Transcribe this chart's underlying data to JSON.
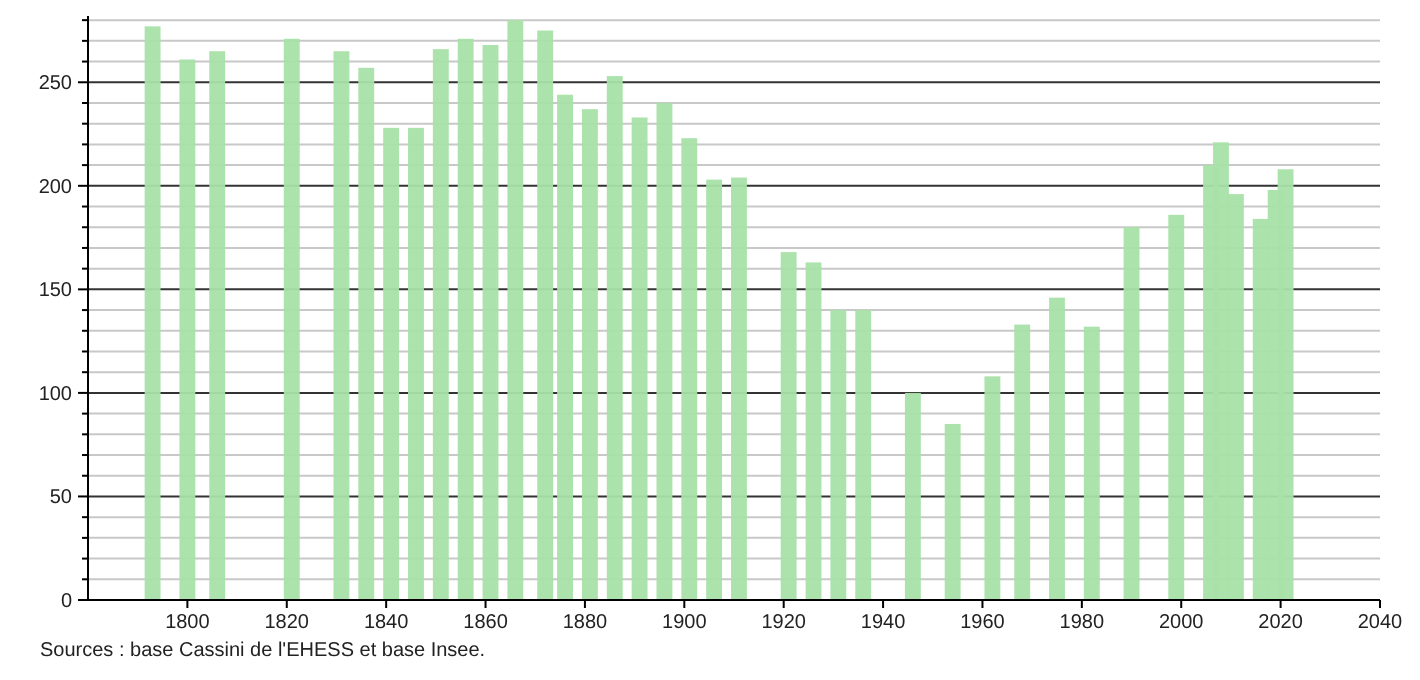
{
  "chart_data": {
    "type": "bar",
    "color": "#a8e2a8",
    "x": [
      1793,
      1800,
      1806,
      1821,
      1831,
      1836,
      1841,
      1846,
      1851,
      1856,
      1861,
      1866,
      1872,
      1876,
      1881,
      1886,
      1891,
      1896,
      1901,
      1906,
      1911,
      1921,
      1926,
      1931,
      1936,
      1946,
      1954,
      1962,
      1968,
      1975,
      1982,
      1990,
      1999,
      2006,
      2008,
      2011,
      2016,
      2019,
      2021
    ],
    "values": [
      277,
      261,
      265,
      271,
      265,
      257,
      228,
      228,
      266,
      271,
      268,
      280,
      275,
      244,
      237,
      253,
      233,
      240,
      223,
      203,
      204,
      168,
      163,
      140,
      140,
      100,
      85,
      108,
      133,
      146,
      132,
      180,
      186,
      210,
      221,
      196,
      184,
      198,
      208
    ],
    "xlim": [
      1780,
      2040
    ],
    "xticks": [
      1800,
      1820,
      1840,
      1860,
      1880,
      1900,
      1920,
      1940,
      1960,
      1980,
      2000,
      2020,
      2040
    ],
    "ylim": [
      0,
      282
    ],
    "yticks": [
      0,
      {
        "value": 10,
        "label": null
      },
      {
        "value": 20,
        "label": null
      },
      {
        "value": 30,
        "label": null
      },
      {
        "value": 40,
        "label": null
      },
      50,
      {
        "value": 60,
        "label": null
      },
      {
        "value": 70,
        "label": null
      },
      {
        "value": 80,
        "label": null
      },
      {
        "value": 90,
        "label": null
      },
      100,
      {
        "value": 110,
        "label": null
      },
      {
        "value": 120,
        "label": null
      },
      {
        "value": 130,
        "label": null
      },
      {
        "value": 140,
        "label": null
      },
      150,
      {
        "value": 160,
        "label": null
      },
      {
        "value": 170,
        "label": null
      },
      {
        "value": 180,
        "label": null
      },
      {
        "value": 190,
        "label": null
      },
      200,
      {
        "value": 210,
        "label": null
      },
      {
        "value": 220,
        "label": null
      },
      {
        "value": 230,
        "label": null
      },
      {
        "value": 240,
        "label": null
      },
      250,
      {
        "value": 260,
        "label": null
      },
      {
        "value": 270,
        "label": null
      },
      {
        "value": 280,
        "label": null
      }
    ],
    "grid": "y",
    "annotations": [
      "Sources : base Cassini de l'EHESS et base Insee."
    ]
  }
}
